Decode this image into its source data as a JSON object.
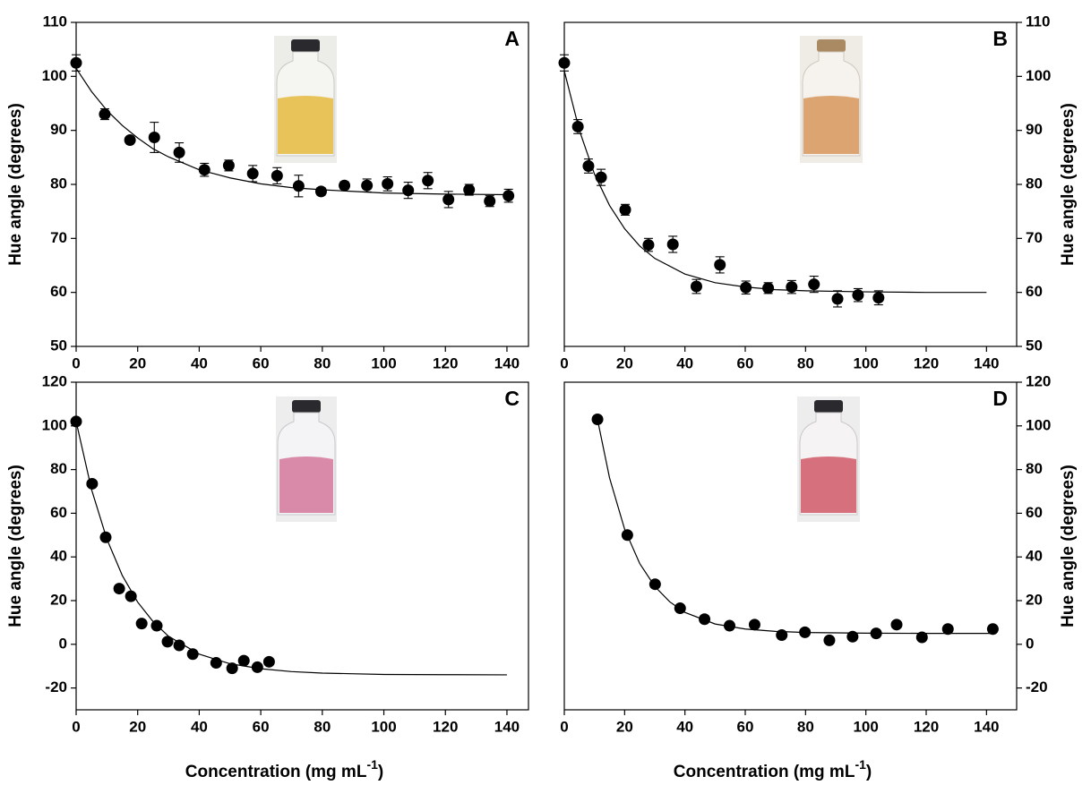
{
  "chart_data": [
    {
      "type": "scatter",
      "panel_label": "A",
      "y_label": "Hue angle (degrees)",
      "y_axis_side": "left",
      "color": "#000000",
      "xlim": [
        0,
        147
      ],
      "ylim": [
        50,
        110
      ],
      "xticks": [
        0,
        20,
        40,
        60,
        80,
        100,
        120,
        140
      ],
      "yticks": [
        50,
        60,
        70,
        80,
        90,
        100,
        110
      ],
      "x": [
        0,
        9.3,
        17.5,
        25.4,
        33.5,
        41.7,
        49.6,
        57.4,
        65.3,
        72.3,
        79.6,
        87.2,
        94.5,
        101.2,
        107.9,
        114.3,
        121,
        127.7,
        134.4,
        140.5
      ],
      "values": [
        102.5,
        93,
        88.2,
        88.7,
        85.9,
        82.7,
        83.5,
        82,
        81.6,
        79.7,
        78.7,
        79.8,
        79.8,
        80.1,
        78.9,
        80.7,
        77.2,
        79,
        76.9,
        77.9
      ],
      "errors": [
        1.5,
        1,
        0.5,
        2.8,
        1.8,
        1.2,
        1,
        1.5,
        1.5,
        2,
        0.7,
        0.7,
        1.2,
        1.3,
        1.5,
        1.5,
        1.5,
        1,
        1,
        1.2
      ],
      "fit": {
        "x": [
          0,
          5,
          10,
          15,
          20,
          25,
          30,
          40,
          50,
          60,
          70,
          80,
          100,
          120,
          140
        ],
        "values": [
          101.5,
          97.2,
          93.7,
          90.9,
          88.6,
          86.6,
          85.1,
          82.7,
          81.2,
          80.1,
          79.4,
          79.0,
          78.4,
          78.2,
          78.1
        ]
      }
    },
    {
      "type": "scatter",
      "panel_label": "B",
      "y_label": "Hue angle (degrees)",
      "y_axis_side": "right",
      "color": "#000000",
      "xlim": [
        0,
        150
      ],
      "ylim": [
        50,
        110
      ],
      "xticks": [
        0,
        20,
        40,
        60,
        80,
        100,
        120,
        140
      ],
      "yticks": [
        50,
        60,
        70,
        80,
        90,
        100,
        110
      ],
      "x": [
        0,
        4.5,
        8.0,
        12.2,
        20.2,
        27.9,
        36,
        43.8,
        51.6,
        60.2,
        67.6,
        75.4,
        82.8,
        90.6,
        97.4,
        104.2
      ],
      "values": [
        102.5,
        90.7,
        83.4,
        81.3,
        75.3,
        68.8,
        68.9,
        61.1,
        65.1,
        60.9,
        60.8,
        61,
        61.5,
        58.8,
        59.5,
        59
      ],
      "errors": [
        1.5,
        1.3,
        1.3,
        1.5,
        1,
        1.2,
        1.5,
        1.3,
        1.5,
        1.2,
        1,
        1.2,
        1.5,
        1.5,
        1.2,
        1.3
      ],
      "fit": {
        "x": [
          0,
          5,
          10,
          15,
          20,
          25,
          30,
          40,
          50,
          60,
          70,
          80,
          100,
          120,
          140
        ],
        "values": [
          101,
          90.0,
          81.9,
          76.1,
          71.8,
          68.6,
          66.3,
          63.4,
          61.8,
          61.0,
          60.5,
          60.3,
          60.1,
          60.0,
          60.0
        ]
      }
    },
    {
      "type": "scatter",
      "panel_label": "C",
      "y_label": "Hue angle (degrees)",
      "y_axis_side": "left",
      "color": "#000000",
      "x_label": {
        "text": "Concentration (mg mL",
        "superscript": "-1",
        "suffix": ")"
      },
      "xlim": [
        0,
        147
      ],
      "ylim": [
        -30,
        120
      ],
      "xticks": [
        0,
        20,
        40,
        60,
        80,
        100,
        120,
        140
      ],
      "yticks": [
        -20,
        0,
        20,
        40,
        60,
        80,
        100,
        120
      ],
      "x": [
        0,
        5.2,
        9.6,
        14,
        17.8,
        21.3,
        26.2,
        29.7,
        33.5,
        37.9,
        45.5,
        50.7,
        54.5,
        58.9,
        62.7
      ],
      "values": [
        102,
        73.5,
        49,
        25.5,
        22,
        9.5,
        8.5,
        1.2,
        -0.5,
        -4.5,
        -8.5,
        -11,
        -7.5,
        -10.5,
        -8
      ],
      "fit": {
        "x": [
          0,
          5,
          10,
          15,
          20,
          25,
          30,
          40,
          50,
          60,
          70,
          80,
          100,
          120,
          140
        ],
        "values": [
          102,
          70.9,
          48.1,
          31.5,
          19.3,
          10.4,
          3.7,
          -4.5,
          -8.9,
          -11.2,
          -12.5,
          -13.2,
          -13.8,
          -13.9,
          -14.0
        ]
      }
    },
    {
      "type": "scatter",
      "panel_label": "D",
      "y_label": "Hue angle (degrees)",
      "y_axis_side": "right",
      "color": "#000000",
      "x_label": {
        "text": "Concentration (mg mL",
        "superscript": "-1",
        "suffix": ")"
      },
      "xlim": [
        0,
        150
      ],
      "ylim": [
        -30,
        120
      ],
      "xticks": [
        0,
        20,
        40,
        60,
        80,
        100,
        120,
        140
      ],
      "yticks": [
        -20,
        0,
        20,
        40,
        60,
        80,
        100,
        120
      ],
      "x": [
        11,
        20.9,
        30.1,
        38.4,
        46.5,
        54.8,
        63.1,
        72.1,
        79.8,
        87.9,
        95.6,
        103.4,
        110.2,
        118.6,
        127.2,
        142.1
      ],
      "values": [
        103,
        50,
        27.5,
        16.5,
        11.5,
        8.5,
        9,
        4.2,
        5.5,
        1.8,
        3.5,
        5,
        9,
        3.2,
        7,
        7
      ],
      "fit": {
        "x": [
          11,
          15,
          20,
          25,
          30,
          35,
          40,
          50,
          60,
          70,
          80,
          100,
          120,
          142
        ],
        "values": [
          103,
          76.2,
          52.7,
          37.0,
          26.5,
          19.4,
          14.6,
          9.3,
          7.0,
          5.9,
          5.4,
          5.1,
          5.0,
          5.0
        ]
      }
    }
  ]
}
